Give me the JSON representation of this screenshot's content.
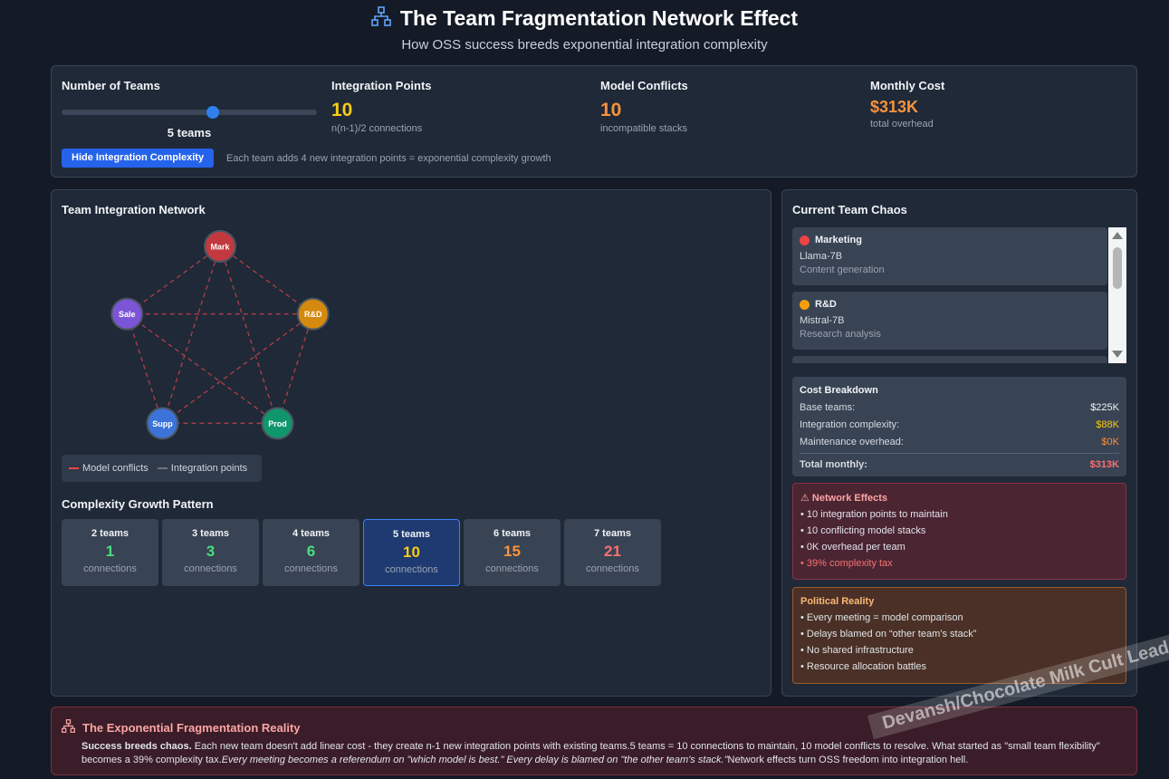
{
  "header": {
    "title": "The Team Fragmentation Network Effect",
    "subtitle": "How OSS success breeds exponential integration complexity",
    "icon": "network-icon"
  },
  "controls": {
    "teams_label": "Number of Teams",
    "teams_value_text": "5 teams",
    "slider": {
      "min": 2,
      "max": 7,
      "value": 5
    },
    "toggle_button": "Hide Integration Complexity",
    "note": "Each team adds 4 new integration points = exponential complexity growth"
  },
  "stats": [
    {
      "label": "Integration Points",
      "value": "10",
      "sub": "n(n-1)/2 connections",
      "color": "#facc15"
    },
    {
      "label": "Model Conflicts",
      "value": "10",
      "sub": "incompatible stacks",
      "color": "#fb923c"
    },
    {
      "label": "Monthly Cost",
      "value": "$313K",
      "sub": "total overhead",
      "color": "#fb923c"
    }
  ],
  "network": {
    "title": "Team Integration Network",
    "nodes": [
      {
        "label": "Mark",
        "color": "#c2393f"
      },
      {
        "label": "R&D",
        "color": "#d4890f"
      },
      {
        "label": "Prod",
        "color": "#10966b"
      },
      {
        "label": "Supp",
        "color": "#3b73d9"
      },
      {
        "label": "Sale",
        "color": "#7c55d6"
      }
    ],
    "legend": [
      {
        "label": "Model conflicts",
        "color": "#ef4444"
      },
      {
        "label": "Integration points",
        "color": "#6b7280"
      }
    ]
  },
  "growth": {
    "title": "Complexity Growth Pattern",
    "cards": [
      {
        "teams": "2 teams",
        "value": "1",
        "label": "connections",
        "color": "#4ade80"
      },
      {
        "teams": "3 teams",
        "value": "3",
        "label": "connections",
        "color": "#4ade80"
      },
      {
        "teams": "4 teams",
        "value": "6",
        "label": "connections",
        "color": "#4ade80"
      },
      {
        "teams": "5 teams",
        "value": "10",
        "label": "connections",
        "color": "#facc15"
      },
      {
        "teams": "6 teams",
        "value": "15",
        "label": "connections",
        "color": "#fb923c"
      },
      {
        "teams": "7 teams",
        "value": "21",
        "label": "connections",
        "color": "#f87171"
      }
    ]
  },
  "chaos": {
    "title": "Current Team Chaos",
    "teams": [
      {
        "name": "Marketing",
        "model": "Llama-7B",
        "use": "Content generation",
        "color": "#ef4444"
      },
      {
        "name": "R&D",
        "model": "Mistral-7B",
        "use": "Research analysis",
        "color": "#f59e0b"
      }
    ]
  },
  "cost": {
    "title": "Cost Breakdown",
    "rows": [
      {
        "label": "Base teams:",
        "value": "$225K",
        "color": "#f1f3f7"
      },
      {
        "label": "Integration complexity:",
        "value": "$88K",
        "color": "#facc15"
      },
      {
        "label": "Maintenance overhead:",
        "value": "$0K",
        "color": "#fb923c"
      }
    ],
    "total_label": "Total monthly:",
    "total_value": "$313K",
    "total_color": "#f87171"
  },
  "effects": {
    "title": "⚠ Network Effects",
    "items": [
      "• 10 integration points to maintain",
      "• 10 conflicting model stacks",
      "• 0K overhead per team"
    ],
    "highlight": "• 39% complexity tax"
  },
  "political": {
    "title": "Political Reality",
    "items": [
      "• Every meeting = model comparison",
      "• Delays blamed on “other team’s stack”",
      "• No shared infrastructure",
      "• Resource allocation battles"
    ]
  },
  "bottom": {
    "title": "The Exponential Fragmentation Reality",
    "lead": "Success breeds chaos.",
    "text1": " Each new team doesn't add linear cost - they create n-1 new integration points with existing teams.5 teams = 10 connections to maintain, 10 model conflicts to resolve. What started as \"small team flexibility\" becomes a 39% complexity tax.",
    "italic": "Every meeting becomes a referendum on \"which model is best.\" Every delay is blamed on \"the other team's stack.\"",
    "text2": "Network effects turn OSS freedom into integration hell."
  },
  "watermark": "Devansh/Chocolate Milk Cult Leader"
}
